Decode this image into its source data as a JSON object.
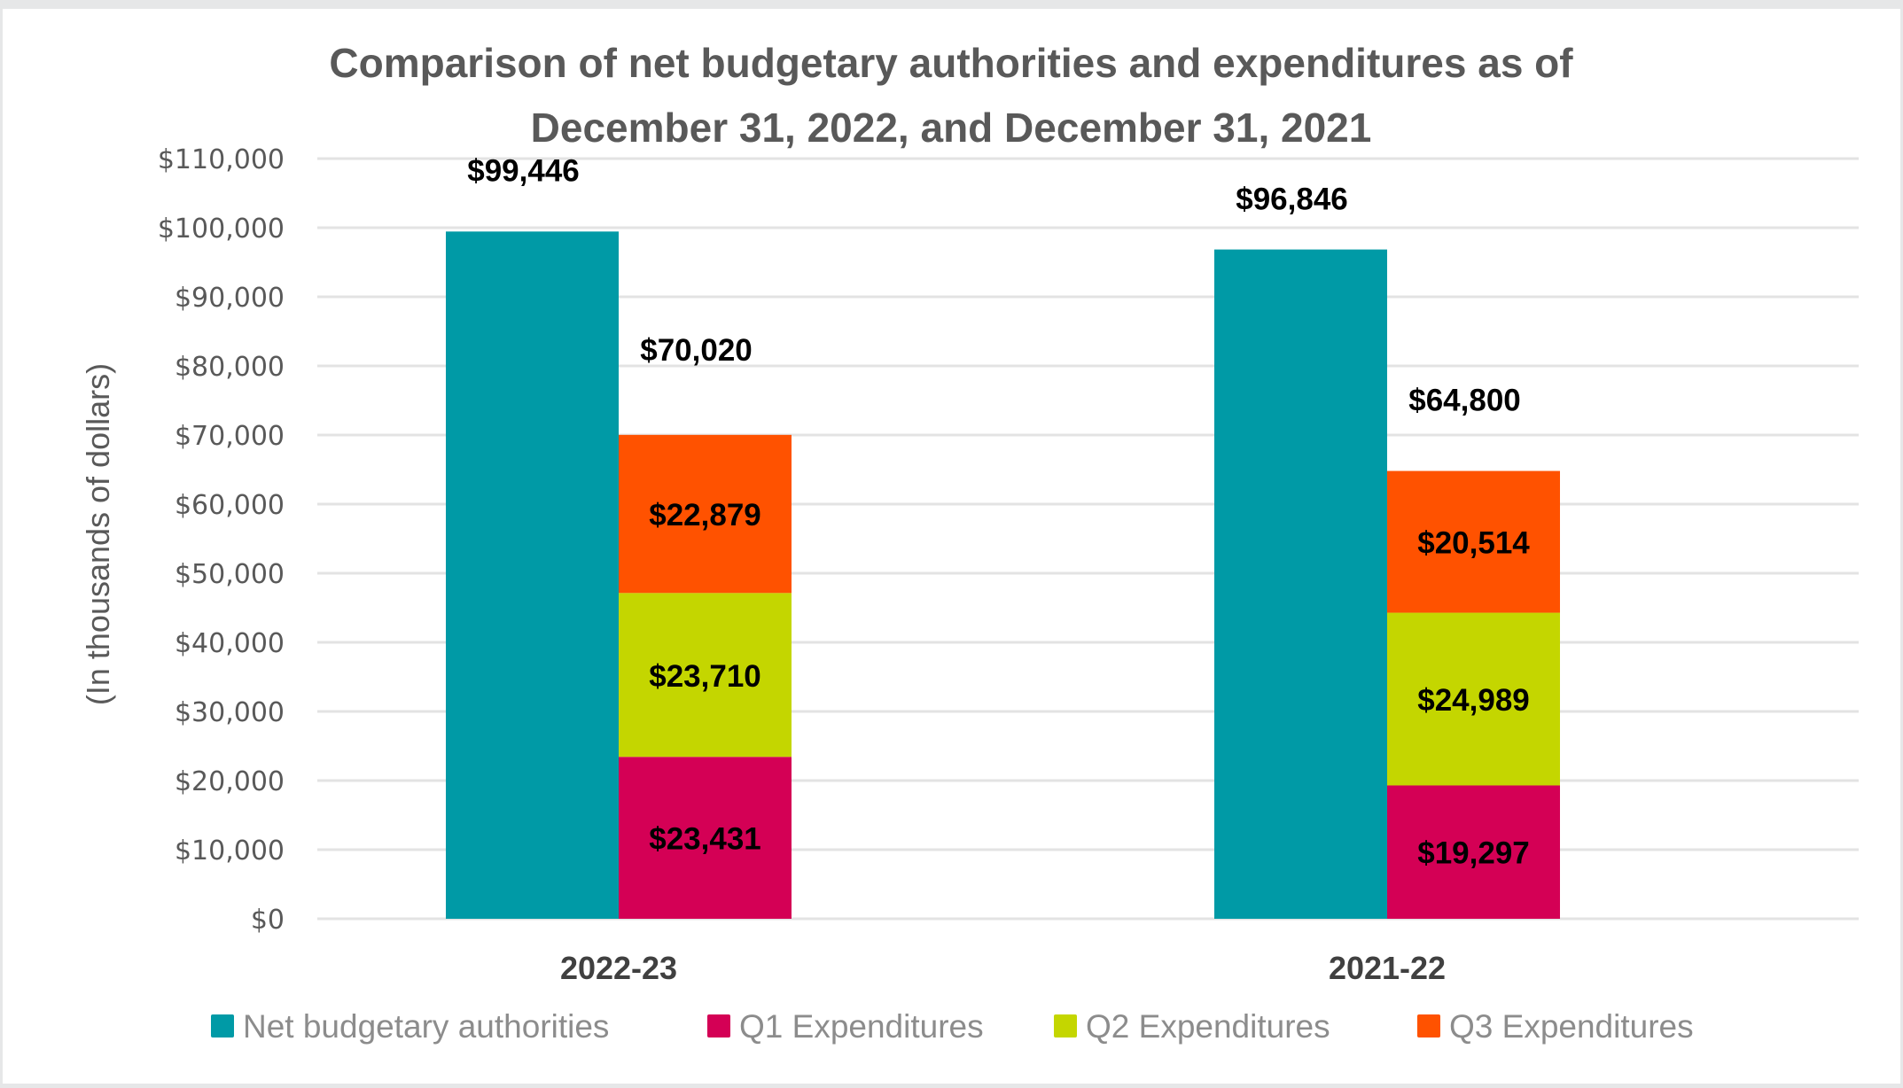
{
  "chart_data": {
    "type": "bar",
    "subtype": "clustered-with-stacked",
    "title": "Comparison of net budgetary authorities and expenditures as of December 31, 2022, and December 31, 2021",
    "title_lines": [
      "Comparison of net budgetary authorities and expenditures as of",
      "December 31, 2022, and December 31, 2021"
    ],
    "xlabel": "",
    "ylabel": "(In thousands of dollars)",
    "ylim": [
      0,
      110000
    ],
    "ytick_step": 10000,
    "ytick_labels": [
      "$0",
      "$10,000",
      "$20,000",
      "$30,000",
      "$40,000",
      "$50,000",
      "$60,000",
      "$70,000",
      "$80,000",
      "$90,000",
      "$100,000",
      "$110,000"
    ],
    "grid": true,
    "legend_position": "bottom",
    "categories": [
      "2022-23",
      "2021-22"
    ],
    "series": [
      {
        "name": "Net budgetary authorities",
        "color": "#009aa6",
        "stack": "authorities",
        "values": [
          99446,
          96846
        ],
        "labels": [
          "$99,446",
          "$96,846"
        ]
      },
      {
        "name": "Q1 Expenditures",
        "color": "#d40055",
        "stack": "expenditures",
        "values": [
          23431,
          19297
        ],
        "labels": [
          "$23,431",
          "$19,297"
        ]
      },
      {
        "name": "Q2 Expenditures",
        "color": "#c4d600",
        "stack": "expenditures",
        "values": [
          23710,
          24989
        ],
        "labels": [
          "$23,710",
          "$24,989"
        ]
      },
      {
        "name": "Q3 Expenditures",
        "color": "#ff5200",
        "stack": "expenditures",
        "values": [
          22879,
          20514
        ],
        "labels": [
          "$22,879",
          "$20,514"
        ]
      }
    ],
    "stack_totals": {
      "values": [
        70020,
        64800
      ],
      "labels": [
        "$70,020",
        "$64,800"
      ]
    }
  }
}
